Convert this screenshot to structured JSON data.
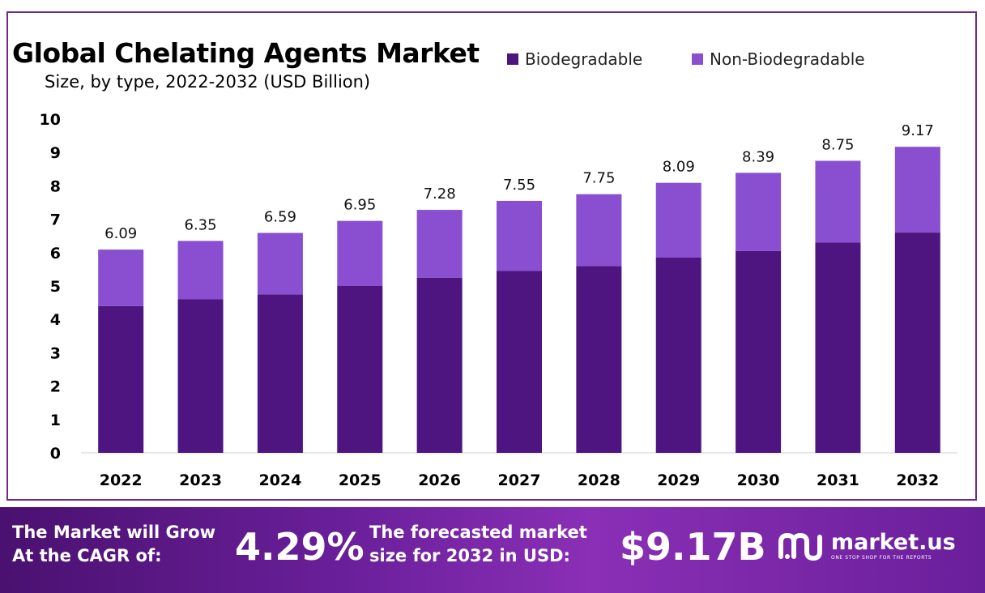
{
  "chart_data": {
    "type": "bar",
    "stacked": true,
    "title": "Global Chelating Agents Market",
    "subtitle": "Size, by type, 2022-2032 (USD Billion)",
    "categories": [
      "2022",
      "2023",
      "2024",
      "2025",
      "2026",
      "2027",
      "2028",
      "2029",
      "2030",
      "2031",
      "2032"
    ],
    "series": [
      {
        "name": "Biodegradable",
        "color": "#4e1580",
        "values": [
          4.4,
          4.6,
          4.75,
          5.0,
          5.25,
          5.45,
          5.6,
          5.85,
          6.05,
          6.3,
          6.6
        ]
      },
      {
        "name": "Non-Biodegradable",
        "color": "#8a4fd0",
        "values": [
          1.69,
          1.75,
          1.84,
          1.95,
          2.03,
          2.1,
          2.15,
          2.24,
          2.34,
          2.45,
          2.57
        ]
      }
    ],
    "totals": [
      "6.09",
      "6.35",
      "6.59",
      "6.95",
      "7.28",
      "7.55",
      "7.75",
      "8.09",
      "8.39",
      "8.75",
      "9.17"
    ],
    "yticks": [
      "0",
      "1",
      "2",
      "3",
      "4",
      "5",
      "6",
      "7",
      "8",
      "9",
      "10"
    ],
    "ylim": [
      0,
      10
    ],
    "grid": false,
    "legend_position": "top-right"
  },
  "footer": {
    "cagr_label_line1": "The Market will Grow",
    "cagr_label_line2": "At the CAGR of:",
    "cagr_value": "4.29%",
    "forecast_label_line1": "The forecasted market",
    "forecast_label_line2": "size for 2032 in USD:",
    "forecast_value": "$9.17B"
  },
  "brand": {
    "name": "market.us",
    "tagline": "ONE STOP SHOP FOR THE REPORTS",
    "logo_icon": "market-us-logo-icon"
  }
}
